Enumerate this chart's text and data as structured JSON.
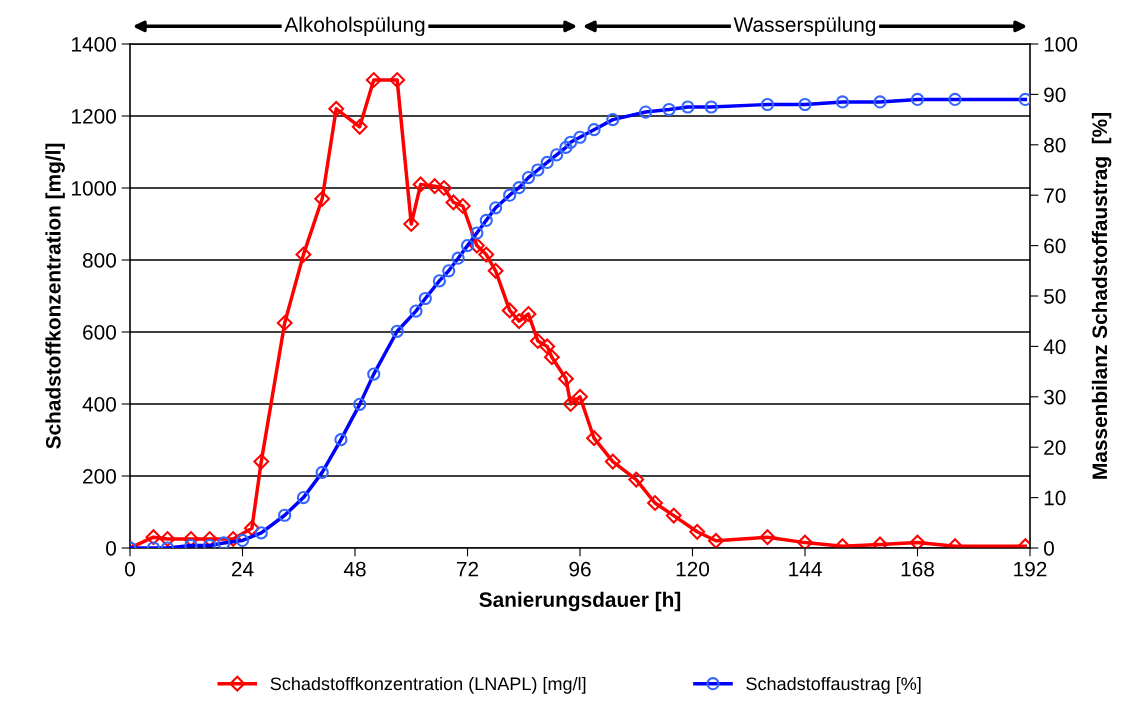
{
  "chart_data": {
    "type": "line",
    "xlabel": "Sanierungsdauer [h]",
    "ylabel": "Schadstoffkonzentration [mg/l]",
    "y2label": "Massenbilanz Schadstoffaustrag  [%]",
    "xlim": [
      0,
      192
    ],
    "xticks": [
      0,
      24,
      48,
      72,
      96,
      120,
      144,
      168,
      192
    ],
    "ylim": [
      0,
      1400
    ],
    "yticks": [
      0,
      200,
      400,
      600,
      800,
      1000,
      1200,
      1400
    ],
    "y2lim": [
      0,
      100
    ],
    "y2ticks": [
      0,
      10,
      20,
      30,
      40,
      50,
      60,
      70,
      80,
      90,
      100
    ],
    "grid": "y",
    "legend": "bottom",
    "annotations": [
      "Alkoholspülung",
      "Wasserspülung"
    ],
    "series": [
      {
        "name": "Schadstoffkonzentration (LNAPL) [mg/l]",
        "color": "#ff0000",
        "marker": "diamond",
        "x": [
          0,
          5,
          8,
          13,
          17,
          22,
          26,
          28,
          33,
          37,
          41,
          44,
          49,
          52,
          57,
          60,
          62,
          65,
          67,
          69,
          71,
          74,
          76,
          78,
          81,
          83,
          85,
          87,
          89,
          90,
          93,
          94,
          96,
          99,
          103,
          108,
          112,
          116,
          121,
          125,
          136,
          144,
          152,
          160,
          168,
          176,
          191
        ],
        "values": [
          0,
          30,
          25,
          25,
          25,
          25,
          55,
          240,
          625,
          815,
          970,
          1220,
          1170,
          1300,
          1300,
          900,
          1010,
          1005,
          1000,
          960,
          950,
          840,
          815,
          770,
          660,
          630,
          650,
          575,
          560,
          530,
          470,
          400,
          420,
          305,
          240,
          190,
          125,
          90,
          45,
          20,
          30,
          15,
          5,
          10,
          15,
          5,
          5
        ]
      },
      {
        "name": "Schadstoffaustrag [%]",
        "color": "#0000ff",
        "marker": "circle",
        "axis": "y2",
        "x": [
          0,
          5,
          8,
          13,
          17,
          20,
          24,
          28,
          33,
          37,
          41,
          45,
          49,
          52,
          57,
          61,
          63,
          66,
          68,
          70,
          72,
          74,
          76,
          78,
          81,
          83,
          85,
          87,
          89,
          91,
          93,
          94,
          96,
          99,
          103,
          110,
          115,
          119,
          124,
          136,
          144,
          152,
          160,
          168,
          176,
          191
        ],
        "values": [
          0,
          0,
          0,
          0.5,
          0.5,
          1,
          1.5,
          3,
          6.5,
          10,
          15,
          21.5,
          28.5,
          34.5,
          43,
          47,
          49.5,
          53,
          55,
          57.5,
          60,
          62.5,
          65,
          67.5,
          70,
          71.5,
          73.5,
          75,
          76.5,
          78,
          79.5,
          80.5,
          81.5,
          83,
          85,
          86.5,
          87,
          87.5,
          87.5,
          88,
          88,
          88.5,
          88.5,
          89,
          89,
          89
        ]
      }
    ]
  }
}
